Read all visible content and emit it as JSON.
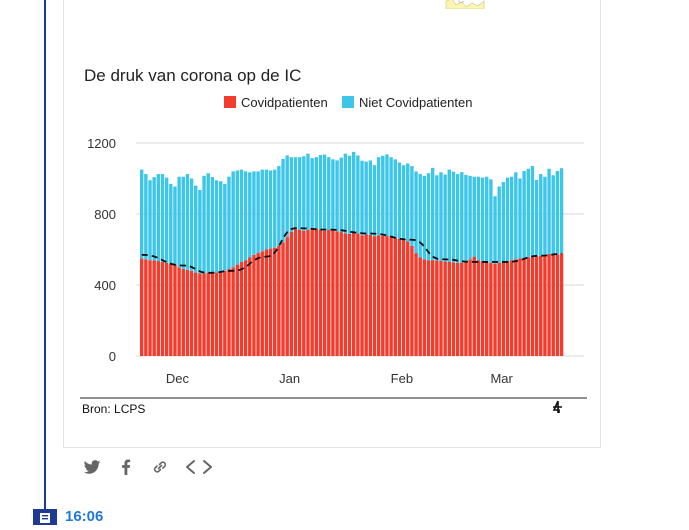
{
  "chart_data": {
    "type": "bar",
    "title": "De druk van corona op de IC",
    "source": "Bron: LCPS",
    "legend_position": "top",
    "stacked": true,
    "series": [
      {
        "name": "Covidpatienten",
        "color": "#f23c2e",
        "values": [
          550,
          545,
          540,
          538,
          535,
          530,
          525,
          520,
          515,
          500,
          490,
          485,
          480,
          470,
          465,
          465,
          470,
          468,
          470,
          475,
          480,
          490,
          500,
          515,
          530,
          540,
          555,
          570,
          580,
          590,
          600,
          605,
          610,
          620,
          640,
          670,
          700,
          720,
          710,
          705,
          710,
          715,
          720,
          712,
          705,
          710,
          708,
          702,
          698,
          690,
          688,
          700,
          690,
          680,
          685,
          682,
          675,
          680,
          678,
          676,
          670,
          668,
          660,
          655,
          645,
          620,
          580,
          555,
          545,
          540,
          540,
          538,
          535,
          532,
          530,
          528,
          525,
          526,
          530,
          545,
          560,
          540,
          535,
          530,
          525,
          520,
          525,
          530,
          535,
          540,
          545,
          550,
          552,
          555,
          560,
          562,
          565,
          570,
          575,
          568,
          572,
          578
        ]
      },
      {
        "name": "Niet Covidpatienten",
        "color": "#3ec6e8",
        "values": [
          500,
          480,
          450,
          470,
          490,
          495,
          480,
          450,
          440,
          510,
          520,
          540,
          520,
          490,
          470,
          550,
          560,
          540,
          520,
          510,
          490,
          520,
          540,
          530,
          520,
          500,
          480,
          470,
          460,
          460,
          450,
          440,
          440,
          450,
          470,
          460,
          420,
          400,
          410,
          420,
          430,
          400,
          400,
          420,
          430,
          410,
          400,
          400,
          420,
          450,
          440,
          450,
          440,
          420,
          410,
          420,
          400,
          440,
          450,
          460,
          450,
          440,
          430,
          420,
          440,
          450,
          460,
          470,
          470,
          490,
          520,
          480,
          500,
          490,
          520,
          510,
          500,
          510,
          490,
          470,
          450,
          470,
          470,
          480,
          470,
          380,
          430,
          450,
          470,
          470,
          490,
          450,
          490,
          500,
          510,
          430,
          460,
          440,
          480,
          450,
          470,
          480
        ]
      }
    ],
    "trend_line": {
      "style": "dashed",
      "color": "#111111",
      "points": [
        [
          0,
          570
        ],
        [
          10,
          510
        ],
        [
          16,
          468
        ],
        [
          22,
          480
        ],
        [
          30,
          560
        ],
        [
          37,
          720
        ],
        [
          45,
          712
        ],
        [
          55,
          690
        ],
        [
          65,
          655
        ],
        [
          72,
          545
        ],
        [
          80,
          530
        ],
        [
          88,
          530
        ],
        [
          96,
          565
        ],
        [
          101,
          575
        ]
      ]
    },
    "x_ticks": [
      {
        "label": "Dec",
        "index": 9
      },
      {
        "label": "Jan",
        "index": 36
      },
      {
        "label": "Feb",
        "index": 63
      },
      {
        "label": "Mar",
        "index": 87
      }
    ],
    "y_ticks": [
      0,
      400,
      800,
      1200
    ],
    "ylim": [
      0,
      1250
    ],
    "grid": true
  },
  "share": {
    "icons": [
      "twitter-icon",
      "facebook-icon",
      "link-icon",
      "embed-icon"
    ]
  },
  "timeline": {
    "time": "16:06"
  }
}
